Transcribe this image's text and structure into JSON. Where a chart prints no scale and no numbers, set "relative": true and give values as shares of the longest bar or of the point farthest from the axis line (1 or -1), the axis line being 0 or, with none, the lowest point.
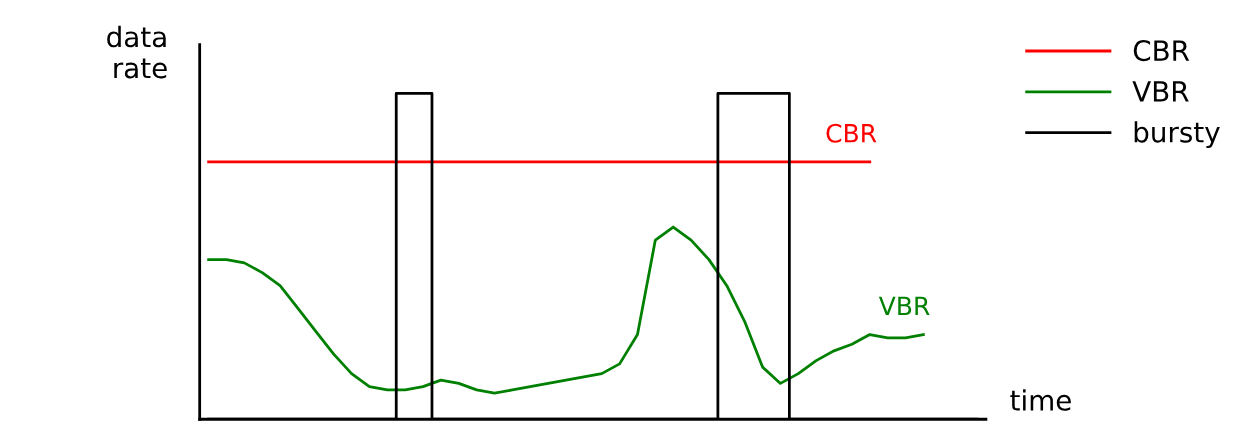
{
  "chart_data": {
    "type": "line",
    "relative": true,
    "xlabel": "time",
    "ylabel": "data\nrate",
    "tick_labels": false,
    "grid": false,
    "legend": "top right",
    "marker": "none",
    "line_style": "solid",
    "categories": [
      null,
      null,
      null,
      null,
      null,
      null,
      null,
      null,
      null,
      null,
      null,
      null,
      null,
      null,
      null,
      null,
      null,
      null,
      null,
      null,
      null,
      null,
      null,
      null,
      null,
      null,
      null,
      null,
      null,
      null,
      null,
      null,
      null,
      null,
      null,
      null,
      null,
      null,
      null,
      null,
      null,
      null,
      null,
      null
    ],
    "series": [
      {
        "name": "CBR",
        "color": "#ff0000",
        "values": [
          0.79,
          0.79,
          0.79,
          0.79,
          0.79,
          0.79,
          0.79,
          0.79,
          0.79,
          0.79,
          0.79,
          0.79,
          0.79,
          0.79,
          0.79,
          0.79,
          0.79,
          0.79,
          0.79,
          0.79,
          0.79,
          0.79,
          0.79,
          0.79,
          0.79,
          0.79,
          0.79,
          0.79,
          0.79,
          0.79,
          0.79,
          0.79,
          0.79,
          0.79,
          0.79,
          0.79,
          0.79,
          0.79,
          null,
          null,
          null,
          null,
          null,
          null
        ]
      },
      {
        "name": "VBR",
        "color": "#008000",
        "values": [
          0.49,
          0.49,
          0.48,
          0.45,
          0.41,
          0.34,
          0.27,
          0.2,
          0.14,
          0.1,
          0.09,
          0.09,
          0.1,
          0.12,
          0.11,
          0.09,
          0.08,
          0.09,
          0.1,
          0.11,
          0.12,
          0.13,
          0.14,
          0.17,
          0.26,
          0.55,
          0.59,
          0.55,
          0.49,
          0.41,
          0.3,
          0.16,
          0.11,
          0.14,
          0.18,
          0.21,
          0.23,
          0.26,
          0.25,
          0.25,
          0.26,
          null,
          null,
          null
        ]
      },
      {
        "name": "bursty",
        "color": "#000000",
        "type": "step",
        "values": [
          0,
          0,
          0,
          0,
          0,
          0,
          0,
          0,
          0,
          0,
          0,
          1,
          1,
          0,
          0,
          0,
          0,
          0,
          0,
          0,
          0,
          0,
          0,
          0,
          0,
          0,
          0,
          0,
          0,
          1,
          1,
          1,
          1,
          0,
          0,
          0,
          0,
          0,
          0,
          0,
          0,
          0,
          0,
          0
        ]
      }
    ],
    "annotations": [
      "CBR",
      "VBR"
    ]
  }
}
